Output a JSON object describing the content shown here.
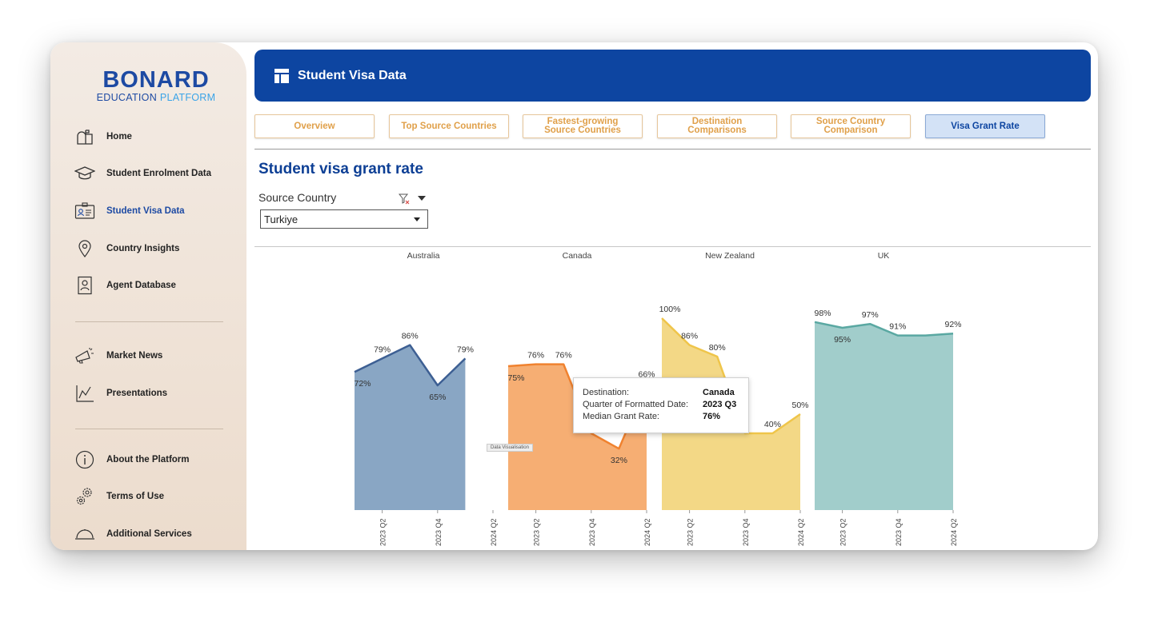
{
  "brand": {
    "name": "BONARD",
    "sub_a": "EDUCATION",
    "sub_b": "PLATFORM"
  },
  "sidebar": {
    "items": [
      {
        "label": "Home",
        "icon": "mailbox-icon"
      },
      {
        "label": "Student Enrolment Data",
        "icon": "graduation-cap-icon"
      },
      {
        "label": "Student Visa Data",
        "icon": "id-card-icon"
      },
      {
        "label": "Country Insights",
        "icon": "location-pin-icon"
      },
      {
        "label": "Agent Database",
        "icon": "contact-book-icon"
      },
      {
        "label": "Market News",
        "icon": "megaphone-icon"
      },
      {
        "label": "Presentations",
        "icon": "line-chart-icon"
      },
      {
        "label": "About the Platform",
        "icon": "info-icon"
      },
      {
        "label": "Terms of Use",
        "icon": "gears-icon"
      },
      {
        "label": "Additional Services",
        "icon": "service-bell-icon"
      }
    ]
  },
  "header": {
    "title": "Student Visa Data"
  },
  "tabs": [
    {
      "label": "Overview"
    },
    {
      "label": "Top Source Countries"
    },
    {
      "label": "Fastest-growing Source Countries"
    },
    {
      "label": "Destination Comparisons"
    },
    {
      "label": "Source Country Comparison"
    },
    {
      "label": "Visa Grant Rate"
    }
  ],
  "page": {
    "title": "Student visa grant rate"
  },
  "filter": {
    "label": "Source Country",
    "value": "Turkiye"
  },
  "tooltip": {
    "rows": [
      {
        "k": "Destination:",
        "v": "Canada"
      },
      {
        "k": "Quarter of Formatted Date:",
        "v": "2023 Q3"
      },
      {
        "k": "Median Grant Rate:",
        "v": "76%"
      }
    ]
  },
  "mini_tag": "Data Visualisation",
  "colors": {
    "Australia": {
      "fill": "#89a6c4",
      "line": "#3d5f93"
    },
    "Canada": {
      "fill": "#f6ae73",
      "line": "#f0822f"
    },
    "New Zealand": {
      "fill": "#f3d886",
      "line": "#efc54a"
    },
    "UK": {
      "fill": "#a1cdcb",
      "line": "#5aa8a2"
    }
  },
  "chart_data": {
    "type": "area",
    "ylabel": "",
    "ylim": [
      0,
      100
    ],
    "panels": [
      {
        "name": "Australia",
        "x": [
          "2023 Q1",
          "2023 Q2",
          "2023 Q3",
          "2023 Q4",
          "2024 Q1"
        ],
        "y": [
          72,
          79,
          86,
          65,
          79
        ],
        "labels": [
          "72%",
          "79%",
          "86%",
          "65%",
          "79%"
        ],
        "ticks": [
          "2023 Q2",
          "2023 Q4",
          "2024 Q2"
        ]
      },
      {
        "name": "Canada",
        "x": [
          "2023 Q1",
          "2023 Q2",
          "2023 Q3",
          "2023 Q4",
          "2024 Q1",
          "2024 Q2"
        ],
        "y": [
          75,
          76,
          76,
          40,
          32,
          66
        ],
        "labels": [
          "75%",
          "76%",
          "76%",
          "40%",
          "32%",
          "66%"
        ],
        "ticks": [
          "2023 Q2",
          "2023 Q4",
          "2024 Q2"
        ]
      },
      {
        "name": "New Zealand",
        "x": [
          "2023 Q1",
          "2023 Q2",
          "2023 Q3",
          "2023 Q4",
          "2024 Q1",
          "2024 Q2"
        ],
        "y": [
          100,
          86,
          80,
          40,
          40,
          50
        ],
        "labels": [
          "100%",
          "86%",
          "80%",
          "",
          "40%",
          "50%"
        ],
        "ticks": [
          "2023 Q2",
          "2023 Q4",
          "2024 Q2"
        ]
      },
      {
        "name": "UK",
        "x": [
          "2023 Q1",
          "2023 Q2",
          "2023 Q3",
          "2023 Q4",
          "2024 Q1",
          "2024 Q2"
        ],
        "y": [
          98,
          95,
          97,
          91,
          91,
          92
        ],
        "labels": [
          "98%",
          "95%",
          "97%",
          "91%",
          "",
          "92%"
        ],
        "ticks": [
          "2023 Q2",
          "2023 Q4",
          "2024 Q2"
        ]
      }
    ]
  }
}
